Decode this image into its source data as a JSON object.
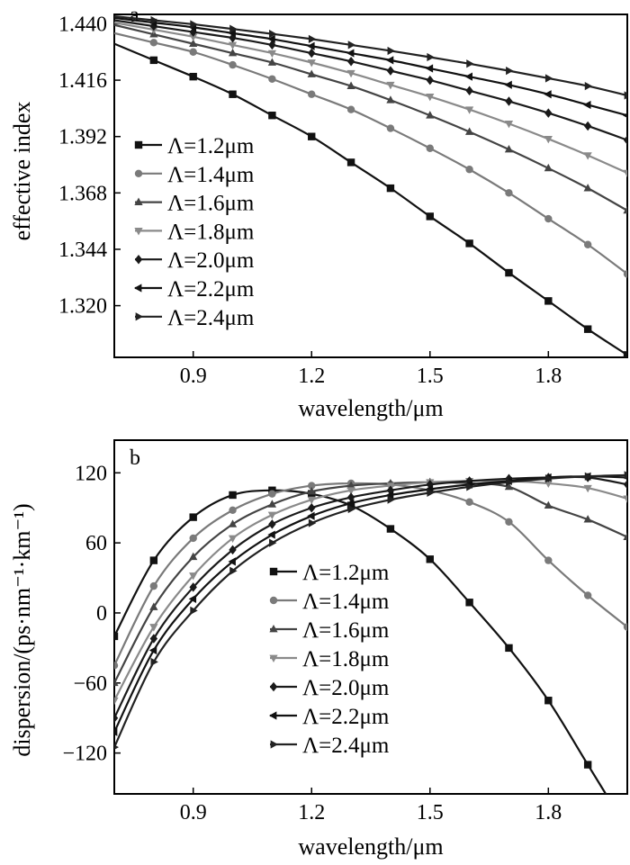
{
  "chart_data": [
    {
      "panel": "a",
      "type": "line",
      "xlabel": "wavelength/μm",
      "ylabel": "effective index",
      "xlim": [
        0.7,
        2.0
      ],
      "ylim": [
        1.298,
        1.444
      ],
      "xticks": [
        0.9,
        1.2,
        1.5,
        1.8
      ],
      "xtick_labels": [
        "0.9",
        "1.2",
        "1.5",
        "1.8"
      ],
      "yticks": [
        1.44,
        1.416,
        1.392,
        1.368,
        1.344,
        1.32
      ],
      "ytick_labels": [
        "1.440",
        "1.416",
        "1.392",
        "1.368",
        "1.344",
        "1.320"
      ],
      "grid": false,
      "legend_position": "bottom-left",
      "x": [
        0.8,
        0.9,
        1.0,
        1.1,
        1.2,
        1.3,
        1.4,
        1.5,
        1.6,
        1.7,
        1.8,
        1.9,
        2.0
      ],
      "series": [
        {
          "name": "Λ=1.2μm",
          "marker": "square",
          "color": "#111111",
          "values": [
            1.4245,
            1.4175,
            1.41,
            1.401,
            1.392,
            1.381,
            1.37,
            1.358,
            1.3465,
            1.334,
            1.322,
            1.31,
            1.299
          ]
        },
        {
          "name": "Λ=1.4μm",
          "marker": "circle",
          "color": "#7a7a7a",
          "values": [
            1.432,
            1.428,
            1.4225,
            1.4165,
            1.41,
            1.4035,
            1.3955,
            1.387,
            1.378,
            1.368,
            1.357,
            1.346,
            1.3335
          ]
        },
        {
          "name": "Λ=1.6μm",
          "marker": "triangle-up",
          "color": "#444444",
          "values": [
            1.4355,
            1.4315,
            1.4275,
            1.4235,
            1.4185,
            1.4135,
            1.4075,
            1.401,
            1.394,
            1.3865,
            1.3785,
            1.37,
            1.3605
          ]
        },
        {
          "name": "Λ=1.8μm",
          "marker": "triangle-down",
          "color": "#8a8a8a",
          "values": [
            1.4375,
            1.4345,
            1.431,
            1.4275,
            1.4235,
            1.419,
            1.414,
            1.409,
            1.4035,
            1.3975,
            1.391,
            1.384,
            1.3765
          ]
        },
        {
          "name": "Λ=2.0μm",
          "marker": "diamond",
          "color": "#1a1a1a",
          "values": [
            1.439,
            1.4365,
            1.434,
            1.431,
            1.4275,
            1.424,
            1.42,
            1.416,
            1.4115,
            1.407,
            1.402,
            1.3965,
            1.3905
          ]
        },
        {
          "name": "Λ=2.2μm",
          "marker": "triangle-left",
          "color": "#111111",
          "values": [
            1.4405,
            1.4385,
            1.436,
            1.4335,
            1.4305,
            1.4275,
            1.4245,
            1.421,
            1.4175,
            1.414,
            1.41,
            1.4055,
            1.401
          ]
        },
        {
          "name": "Λ=2.4μm",
          "marker": "triangle-right",
          "color": "#222222",
          "values": [
            1.4415,
            1.4398,
            1.4378,
            1.4357,
            1.4335,
            1.431,
            1.4285,
            1.4258,
            1.423,
            1.42,
            1.4168,
            1.4135,
            1.4095
          ]
        }
      ]
    },
    {
      "panel": "b",
      "type": "line",
      "xlabel": "wavelength/μm",
      "ylabel": "dispersion/(ps·nm⁻¹·km⁻¹)",
      "xlim": [
        0.7,
        2.0
      ],
      "ylim": [
        -155,
        148
      ],
      "xticks": [
        0.9,
        1.2,
        1.5,
        1.8
      ],
      "xtick_labels": [
        "0.9",
        "1.2",
        "1.5",
        "1.8"
      ],
      "yticks": [
        120,
        60,
        0,
        -60,
        -120
      ],
      "ytick_labels": [
        "120",
        "60",
        "0",
        "−60",
        "−120"
      ],
      "grid": false,
      "legend_position": "lower-center",
      "x": [
        0.7,
        0.8,
        0.9,
        1.0,
        1.1,
        1.2,
        1.3,
        1.4,
        1.5,
        1.6,
        1.7,
        1.8,
        1.9,
        2.0
      ],
      "series": [
        {
          "name": "Λ=1.2μm",
          "marker": "square",
          "color": "#111111",
          "values": [
            -20,
            45,
            82,
            101,
            105,
            102,
            92,
            72,
            46,
            9,
            -30,
            -75,
            -130,
            -185
          ]
        },
        {
          "name": "Λ=1.4μm",
          "marker": "circle",
          "color": "#7a7a7a",
          "values": [
            -45,
            23,
            64,
            88,
            102,
            109,
            111,
            110,
            105,
            95,
            78,
            45,
            15,
            -12
          ]
        },
        {
          "name": "Λ=1.6μm",
          "marker": "triangle-up",
          "color": "#444444",
          "values": [
            -60,
            5,
            48,
            76,
            93,
            104,
            109,
            111,
            112,
            111,
            108,
            92,
            80,
            65
          ]
        },
        {
          "name": "Λ=1.8μm",
          "marker": "triangle-down",
          "color": "#8a8a8a",
          "values": [
            -75,
            -12,
            32,
            64,
            84,
            97,
            105,
            109,
            112,
            113,
            113,
            111,
            107,
            98
          ]
        },
        {
          "name": "Λ=2.0μm",
          "marker": "diamond",
          "color": "#1a1a1a",
          "values": [
            -90,
            -22,
            22,
            54,
            76,
            90,
            99,
            105,
            110,
            113,
            115,
            116,
            116,
            110
          ]
        },
        {
          "name": "Λ=2.2μm",
          "marker": "triangle-left",
          "color": "#111111",
          "values": [
            -102,
            -32,
            12,
            44,
            67,
            83,
            94,
            101,
            106,
            110,
            113,
            116,
            117,
            116
          ]
        },
        {
          "name": "Λ=2.4μm",
          "marker": "triangle-right",
          "color": "#222222",
          "values": [
            -115,
            -42,
            2,
            36,
            60,
            77,
            89,
            97,
            103,
            108,
            112,
            115,
            117,
            118
          ]
        }
      ]
    }
  ]
}
